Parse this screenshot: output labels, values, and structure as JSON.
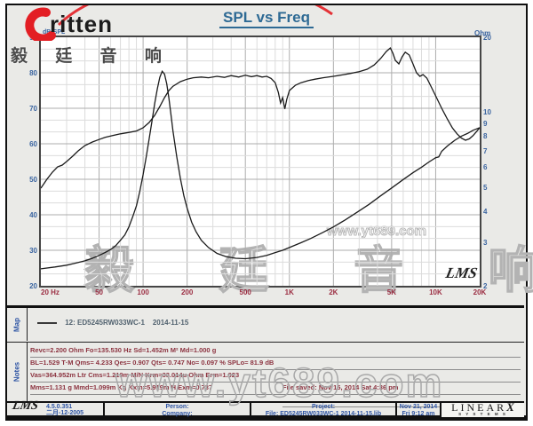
{
  "title": "SPL vs Freq",
  "brand": {
    "name": "ritten",
    "cjk": "毅 廷 音 响"
  },
  "axis_headers": {
    "left": "dB-SPL",
    "right": "Ohm"
  },
  "watermarks": {
    "cjk": "毅 廷 音 响",
    "url_small": "www.yt689.com",
    "url_big": "www.yt689.com"
  },
  "plot_logo": "LMS",
  "map": {
    "label": "Map",
    "curve_id": "12:",
    "curve_name": "ED5245RW033WC-1",
    "curve_date": "2014-11-15"
  },
  "notes": {
    "label": "Notes",
    "lines": [
      "Revc=2.200 Ohm  Fo=135.530 Hz  Sd=1.452m M²  Md=1.000 g",
      "BL=1.529 T·M  Qms= 4.233  Qes= 0.907  Qts= 0.747  No= 0.097 %  SPLo= 81.9 dB",
      "Vas=364.952m Ltr  Cms=1.219m M/N  Krm=33.014u Ohm  Erm=1.023",
      "Mms=1.131 g  Mmd=1.099m Kg  Kxm=5.919m H  Exm=0.737"
    ],
    "saved_line": "File saved:  Nov 15, 2014  Sat 4:36 pm"
  },
  "footer": {
    "lms": "LMS",
    "version": "4.5.0.351",
    "version_date": "二月-12-2005",
    "person_label": "Person:",
    "company_label": "Company:",
    "project_label": "Project:",
    "file": "File: ED5245RW033WC-1  2014-11-15.lib",
    "date": "Nov 21, 2014",
    "time": "Fri  9:12 am",
    "linearx_main": "LINEAR",
    "linearx_x": "X",
    "linearx_sub": "S Y S T E M S"
  },
  "colors": {
    "title_blue": "#2e6a94",
    "axis_blue": "#3a64a0",
    "axis_red": "#9b2d42",
    "notes_red": "#8c3340",
    "footer_blue": "#2f55a4",
    "curve": "#1b1b1b",
    "grid_minor": "#dcdcdc",
    "grid_major": "#adadad",
    "brand_red": "#e31e24"
  },
  "chart_data": {
    "type": "line",
    "title": "SPL vs Freq",
    "x_axis": {
      "scale": "log",
      "min": 20,
      "max": 20000,
      "unit": "Hz",
      "ticks": [
        {
          "v": 20,
          "label": "20 Hz"
        },
        {
          "v": 50,
          "label": "50"
        },
        {
          "v": 100,
          "label": "100"
        },
        {
          "v": 200,
          "label": "200"
        },
        {
          "v": 500,
          "label": "500"
        },
        {
          "v": 1000,
          "label": "1K"
        },
        {
          "v": 2000,
          "label": "2K"
        },
        {
          "v": 5000,
          "label": "5K"
        },
        {
          "v": 10000,
          "label": "10K"
        },
        {
          "v": 20000,
          "label": "20K"
        }
      ],
      "major_gridlines": [
        50,
        100,
        200,
        500,
        1000,
        2000,
        5000,
        10000
      ]
    },
    "y_left": {
      "label": "dB-SPL",
      "min": 20,
      "max": 90,
      "ticks": [
        90,
        80,
        70,
        60,
        50,
        40,
        30,
        20
      ],
      "minor_divisions_per_major": 3
    },
    "y_right": {
      "label": "Ohm",
      "scale": "log",
      "min": 2,
      "max": 20,
      "ticks": [
        20,
        10,
        9,
        8,
        7,
        6,
        5,
        4,
        3,
        2
      ]
    },
    "series": [
      {
        "name": "SPL (dB)",
        "axis": "left",
        "points": [
          [
            20,
            47.5
          ],
          [
            22,
            50
          ],
          [
            24,
            52
          ],
          [
            26,
            53.5
          ],
          [
            28,
            54
          ],
          [
            30,
            55
          ],
          [
            33,
            56.5
          ],
          [
            36,
            58
          ],
          [
            40,
            59.5
          ],
          [
            45,
            60.5
          ],
          [
            50,
            61.2
          ],
          [
            55,
            61.8
          ],
          [
            60,
            62.2
          ],
          [
            70,
            62.8
          ],
          [
            80,
            63.2
          ],
          [
            90,
            63.6
          ],
          [
            100,
            64.5
          ],
          [
            110,
            66
          ],
          [
            120,
            68
          ],
          [
            130,
            70.5
          ],
          [
            140,
            73
          ],
          [
            150,
            75
          ],
          [
            160,
            76.2
          ],
          [
            180,
            77.5
          ],
          [
            200,
            78.2
          ],
          [
            220,
            78.6
          ],
          [
            250,
            78.8
          ],
          [
            280,
            78.6
          ],
          [
            320,
            79
          ],
          [
            360,
            78.7
          ],
          [
            400,
            79.2
          ],
          [
            450,
            78.8
          ],
          [
            500,
            79.3
          ],
          [
            550,
            78.9
          ],
          [
            600,
            79.2
          ],
          [
            650,
            78.8
          ],
          [
            700,
            79
          ],
          [
            750,
            78.4
          ],
          [
            800,
            77.2
          ],
          [
            840,
            74.5
          ],
          [
            870,
            71.5
          ],
          [
            900,
            73
          ],
          [
            930,
            69.8
          ],
          [
            960,
            72.5
          ],
          [
            1000,
            75
          ],
          [
            1100,
            76.5
          ],
          [
            1200,
            77.2
          ],
          [
            1350,
            77.8
          ],
          [
            1500,
            78.2
          ],
          [
            1700,
            78.6
          ],
          [
            2000,
            79
          ],
          [
            2300,
            79.4
          ],
          [
            2600,
            79.8
          ],
          [
            3000,
            80.3
          ],
          [
            3400,
            81
          ],
          [
            3800,
            82.2
          ],
          [
            4200,
            84
          ],
          [
            4600,
            86
          ],
          [
            4900,
            87
          ],
          [
            5100,
            85.5
          ],
          [
            5300,
            83.5
          ],
          [
            5600,
            82.5
          ],
          [
            5900,
            84.5
          ],
          [
            6200,
            85.8
          ],
          [
            6600,
            85
          ],
          [
            7000,
            82.5
          ],
          [
            7400,
            80
          ],
          [
            7800,
            79
          ],
          [
            8200,
            79.5
          ],
          [
            8700,
            78.5
          ],
          [
            9200,
            76.5
          ],
          [
            10000,
            73.5
          ],
          [
            11000,
            70
          ],
          [
            12000,
            67
          ],
          [
            13000,
            64.5
          ],
          [
            14000,
            62.8
          ],
          [
            15000,
            61.6
          ],
          [
            16000,
            61
          ],
          [
            17000,
            61.4
          ],
          [
            18000,
            62.3
          ],
          [
            19000,
            63.4
          ],
          [
            20000,
            64.5
          ]
        ]
      },
      {
        "name": "Impedance (Ohm)",
        "axis": "right",
        "points": [
          [
            20,
            2.34
          ],
          [
            25,
            2.38
          ],
          [
            30,
            2.42
          ],
          [
            35,
            2.47
          ],
          [
            40,
            2.52
          ],
          [
            45,
            2.58
          ],
          [
            50,
            2.65
          ],
          [
            55,
            2.72
          ],
          [
            60,
            2.8
          ],
          [
            65,
            2.9
          ],
          [
            70,
            3.05
          ],
          [
            75,
            3.2
          ],
          [
            80,
            3.45
          ],
          [
            85,
            3.8
          ],
          [
            90,
            4.2
          ],
          [
            95,
            4.8
          ],
          [
            100,
            5.6
          ],
          [
            105,
            6.6
          ],
          [
            110,
            7.8
          ],
          [
            115,
            9.2
          ],
          [
            120,
            10.8
          ],
          [
            125,
            12.4
          ],
          [
            130,
            13.8
          ],
          [
            135,
            14.6
          ],
          [
            140,
            14.2
          ],
          [
            145,
            13
          ],
          [
            150,
            11.4
          ],
          [
            155,
            9.8
          ],
          [
            160,
            8.4
          ],
          [
            170,
            6.6
          ],
          [
            180,
            5.4
          ],
          [
            190,
            4.6
          ],
          [
            200,
            4.1
          ],
          [
            215,
            3.6
          ],
          [
            230,
            3.3
          ],
          [
            250,
            3.05
          ],
          [
            280,
            2.85
          ],
          [
            320,
            2.7
          ],
          [
            370,
            2.62
          ],
          [
            430,
            2.58
          ],
          [
            500,
            2.57
          ],
          [
            600,
            2.6
          ],
          [
            700,
            2.65
          ],
          [
            800,
            2.72
          ],
          [
            900,
            2.78
          ],
          [
            1000,
            2.85
          ],
          [
            1200,
            2.98
          ],
          [
            1400,
            3.1
          ],
          [
            1700,
            3.28
          ],
          [
            2000,
            3.45
          ],
          [
            2400,
            3.68
          ],
          [
            2900,
            3.95
          ],
          [
            3500,
            4.25
          ],
          [
            4200,
            4.6
          ],
          [
            5000,
            4.95
          ],
          [
            6000,
            5.35
          ],
          [
            7000,
            5.7
          ],
          [
            8000,
            6.0
          ],
          [
            9000,
            6.3
          ],
          [
            10000,
            6.55
          ],
          [
            10500,
            6.6
          ],
          [
            11000,
            6.95
          ],
          [
            12000,
            7.3
          ],
          [
            13500,
            7.7
          ],
          [
            15000,
            8.0
          ],
          [
            16500,
            8.2
          ],
          [
            18000,
            8.45
          ],
          [
            19000,
            8.55
          ],
          [
            20000,
            8.65
          ]
        ]
      }
    ]
  }
}
